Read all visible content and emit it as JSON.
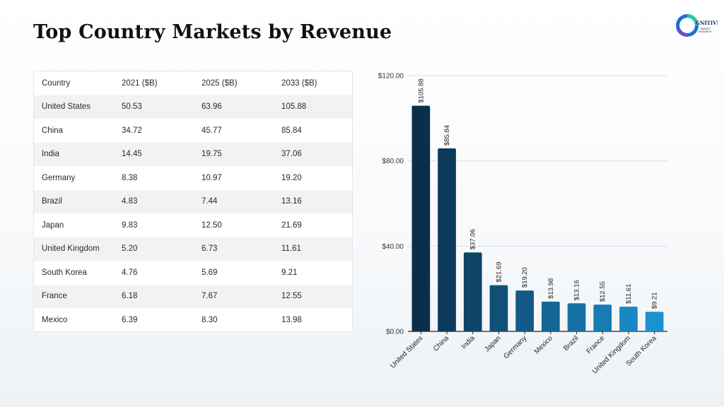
{
  "page": {
    "title": "Top Country Markets by Revenue"
  },
  "logo": {
    "mark": "C",
    "line1": "GNITIVE",
    "line2": "MARKET",
    "line3": "RESEARCH"
  },
  "table": {
    "headers": [
      "Country",
      "2021 ($B)",
      "2025 ($B)",
      "2033 ($B)"
    ],
    "rows": [
      [
        "United States",
        "50.53",
        "63.96",
        "105.88"
      ],
      [
        "China",
        "34.72",
        "45.77",
        "85.84"
      ],
      [
        "India",
        "14.45",
        "19.75",
        "37.06"
      ],
      [
        "Germany",
        "8.38",
        "10.97",
        "19.20"
      ],
      [
        "Brazil",
        "4.83",
        "7.44",
        "13.16"
      ],
      [
        "Japan",
        "9.83",
        "12.50",
        "21.69"
      ],
      [
        "United Kingdom",
        "5.20",
        "6.73",
        "11.61"
      ],
      [
        "South Korea",
        "4.76",
        "5.69",
        "9.21"
      ],
      [
        "France",
        "6.18",
        "7.67",
        "12.55"
      ],
      [
        "Mexico",
        "6.39",
        "8.30",
        "13.98"
      ]
    ]
  },
  "chart_data": {
    "type": "bar",
    "categories": [
      "United States",
      "China",
      "India",
      "Japan",
      "Germany",
      "Mexico",
      "Brazil",
      "France",
      "United Kingdom",
      "South Korea"
    ],
    "values": [
      105.88,
      85.84,
      37.06,
      21.69,
      19.2,
      13.98,
      13.16,
      12.55,
      11.61,
      9.21
    ],
    "value_labels": [
      "$105.88",
      "$85.84",
      "$37.06",
      "$21.69",
      "$19.20",
      "$13.98",
      "$13.16",
      "$12.55",
      "$11.61",
      "$9.21"
    ],
    "yticks": [
      0,
      40,
      80,
      120
    ],
    "ytick_labels": [
      "$0.00",
      "$40.00",
      "$80.00",
      "$120.00"
    ],
    "ylim": [
      0,
      120
    ],
    "grid": true,
    "colors": [
      "#0b2f4a",
      "#0d3a5a",
      "#0f4468",
      "#114f77",
      "#135a86",
      "#156595",
      "#1770a4",
      "#197bb3",
      "#1a86c2",
      "#1c91d0"
    ],
    "title": "",
    "xlabel": "",
    "ylabel": ""
  }
}
